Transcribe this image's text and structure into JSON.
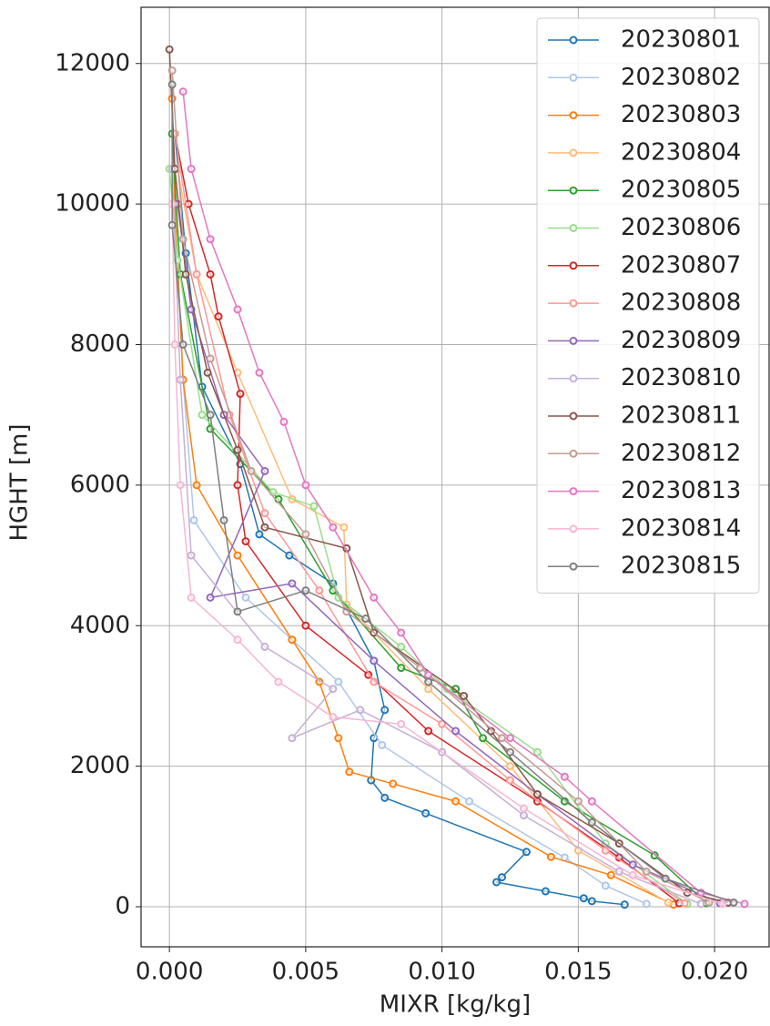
{
  "chart_data": {
    "type": "line",
    "x_label": "MIXR [kg/kg]",
    "y_label": "HGHT [m]",
    "xlim": [
      -0.00104,
      0.022
    ],
    "ylim": [
      -570,
      12800
    ],
    "xticks": [
      {
        "value": 0,
        "label": "0.000"
      },
      {
        "value": 0.005,
        "label": "0.005"
      },
      {
        "value": 0.01,
        "label": "0.010"
      },
      {
        "value": 0.015,
        "label": "0.015"
      },
      {
        "value": 0.02,
        "label": "0.020"
      }
    ],
    "yticks": [
      0,
      2000,
      4000,
      6000,
      8000,
      10000,
      12000
    ],
    "grid": true,
    "legend": "upper right",
    "markers": true,
    "series": [
      {
        "name": "20230801",
        "color": "#1f77b4",
        "x": [
          0.0167,
          0.0155,
          0.0152,
          0.0138,
          0.012,
          0.0122,
          0.0131,
          0.0094,
          0.0079,
          0.0074,
          0.0075,
          0.0079,
          0.0075,
          0.006,
          0.0044,
          0.0033,
          0.0026,
          0.0012,
          0.0006,
          0.0002
        ],
        "values": [
          30,
          80,
          120,
          220,
          350,
          420,
          780,
          1330,
          1550,
          1800,
          2400,
          2800,
          3500,
          4600,
          5000,
          5300,
          6300,
          7400,
          9300,
          11000
        ]
      },
      {
        "name": "20230802",
        "color": "#aec7e8",
        "x": [
          0.0175,
          0.016,
          0.0145,
          0.011,
          0.0078,
          0.0062,
          0.0045,
          0.0028,
          0.0009,
          0.0005,
          0.0002,
          0.0001
        ],
        "values": [
          40,
          300,
          700,
          1500,
          2300,
          3200,
          3800,
          4400,
          5500,
          7500,
          10000,
          11500
        ]
      },
      {
        "name": "20230803",
        "color": "#ff7f0e",
        "x": [
          0.0185,
          0.0162,
          0.014,
          0.0105,
          0.0082,
          0.0066,
          0.0062,
          0.0055,
          0.0045,
          0.0025,
          0.001,
          0.0005,
          0.0002,
          0.0001
        ],
        "values": [
          30,
          450,
          710,
          1500,
          1750,
          1920,
          2400,
          3200,
          3800,
          5000,
          6000,
          7500,
          10000,
          11500
        ]
      },
      {
        "name": "20230804",
        "color": "#ffbb78",
        "x": [
          0.0183,
          0.015,
          0.0125,
          0.0095,
          0.0065,
          0.0064,
          0.0045,
          0.0025,
          0.001,
          0.0003
        ],
        "values": [
          60,
          800,
          2000,
          3100,
          4300,
          5400,
          5800,
          7600,
          9000,
          10500
        ]
      },
      {
        "name": "20230805",
        "color": "#2ca02c",
        "x": [
          0.0197,
          0.0178,
          0.0145,
          0.0115,
          0.0105,
          0.0085,
          0.006,
          0.004,
          0.0015,
          0.0004,
          0.0001
        ],
        "values": [
          50,
          730,
          1500,
          2400,
          3100,
          3400,
          4500,
          5800,
          6800,
          9000,
          11000
        ]
      },
      {
        "name": "20230806",
        "color": "#98df8a",
        "x": [
          0.019,
          0.016,
          0.0135,
          0.0102,
          0.0085,
          0.0062,
          0.0053,
          0.0038,
          0.0012,
          0.0003,
          0
        ],
        "values": [
          40,
          900,
          2200,
          3100,
          3700,
          4400,
          5700,
          5900,
          7000,
          9200,
          10500
        ]
      },
      {
        "name": "20230807",
        "color": "#d62728",
        "x": [
          0.0187,
          0.0165,
          0.0135,
          0.0095,
          0.0073,
          0.005,
          0.0028,
          0.0025,
          0.0026,
          0.0018,
          0.0015,
          0.0007,
          0.0002
        ],
        "values": [
          50,
          700,
          1500,
          2500,
          3300,
          4000,
          5200,
          6000,
          7300,
          8400,
          9000,
          10000,
          11000
        ]
      },
      {
        "name": "20230808",
        "color": "#ff9896",
        "x": [
          0.0189,
          0.016,
          0.0125,
          0.01,
          0.0075,
          0.0055,
          0.0035,
          0.0022,
          0.001,
          0.0002
        ],
        "values": [
          50,
          800,
          1800,
          2600,
          3200,
          4500,
          5600,
          7000,
          9000,
          11000
        ]
      },
      {
        "name": "20230809",
        "color": "#9467bd",
        "x": [
          0.0202,
          0.017,
          0.0135,
          0.0105,
          0.0075,
          0.0045,
          0.0015,
          0.0035,
          0.002,
          0.0008,
          0.0003
        ],
        "values": [
          50,
          600,
          1600,
          2500,
          3500,
          4600,
          4400,
          6200,
          7000,
          8500,
          10000
        ]
      },
      {
        "name": "20230810",
        "color": "#c5b0d5",
        "x": [
          0.0195,
          0.0165,
          0.013,
          0.01,
          0.007,
          0.0045,
          0.006,
          0.0035,
          0.0008,
          0.0004,
          0.0001
        ],
        "values": [
          40,
          500,
          1300,
          2200,
          2800,
          2400,
          3100,
          3700,
          5000,
          7500,
          10500
        ]
      },
      {
        "name": "20230811",
        "color": "#8c564b",
        "x": [
          0.0205,
          0.019,
          0.0165,
          0.0135,
          0.0118,
          0.0108,
          0.0075,
          0.0065,
          0.0035,
          0.0025,
          0.0014,
          0.0006,
          0.0002,
          0
        ],
        "values": [
          60,
          200,
          900,
          1600,
          2500,
          3000,
          3900,
          5100,
          5400,
          6500,
          7600,
          9000,
          10500,
          12200
        ]
      },
      {
        "name": "20230812",
        "color": "#c49c94",
        "x": [
          0.0198,
          0.0175,
          0.015,
          0.0122,
          0.0092,
          0.0065,
          0.005,
          0.003,
          0.0015,
          0.0005,
          0.0001
        ],
        "values": [
          60,
          500,
          1500,
          2400,
          3400,
          4200,
          5300,
          6200,
          7800,
          9500,
          11900
        ]
      },
      {
        "name": "20230813",
        "color": "#e377c2",
        "x": [
          0.0211,
          0.0195,
          0.0155,
          0.0145,
          0.0125,
          0.0095,
          0.0085,
          0.0075,
          0.006,
          0.005,
          0.0042,
          0.0033,
          0.0025,
          0.0015,
          0.0008,
          0.0005
        ],
        "values": [
          40,
          200,
          1500,
          1850,
          2400,
          3300,
          3900,
          4400,
          5400,
          6000,
          6900,
          7600,
          8500,
          9500,
          10500,
          11600
        ]
      },
      {
        "name": "20230814",
        "color": "#f7b6d2",
        "x": [
          0.0203,
          0.017,
          0.013,
          0.0085,
          0.006,
          0.004,
          0.0025,
          0.0008,
          0.0004,
          0.0002,
          0.0001
        ],
        "values": [
          40,
          450,
          1400,
          2600,
          2700,
          3200,
          3800,
          4400,
          6000,
          8000,
          10000
        ]
      },
      {
        "name": "20230815",
        "color": "#7f7f7f",
        "x": [
          0.0207,
          0.0182,
          0.0155,
          0.0125,
          0.0095,
          0.0072,
          0.005,
          0.0025,
          0.002,
          0.0015,
          0.0005,
          0.0001,
          0.0001
        ],
        "values": [
          60,
          400,
          1200,
          2200,
          3200,
          4100,
          4500,
          4200,
          5500,
          7000,
          8000,
          9700,
          11700
        ]
      }
    ]
  }
}
